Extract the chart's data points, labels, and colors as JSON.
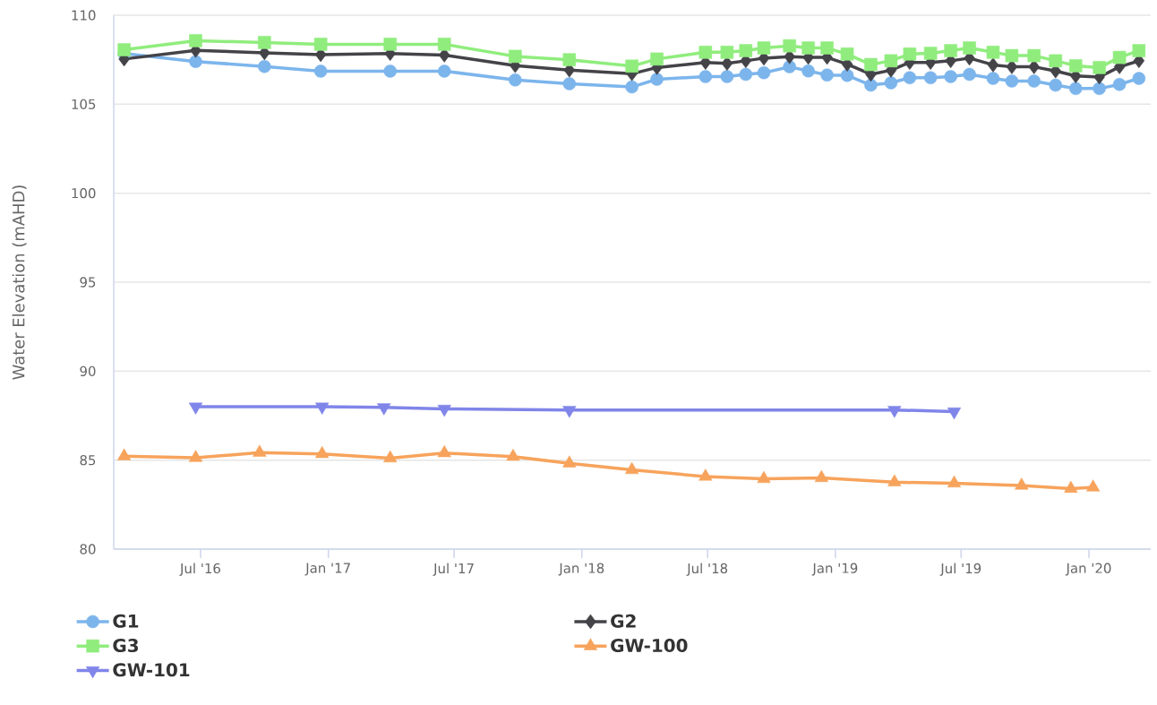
{
  "chart_data": {
    "type": "line",
    "ylabel": "Water Elevation (mAHD)",
    "xlim": [
      "2016-02-27",
      "2020-03-30"
    ],
    "xticks": [
      {
        "value": "2016-07-01",
        "label": "Jul '16"
      },
      {
        "value": "2017-01-01",
        "label": "Jan '17"
      },
      {
        "value": "2017-07-01",
        "label": "Jul '17"
      },
      {
        "value": "2018-01-01",
        "label": "Jan '18"
      },
      {
        "value": "2018-07-01",
        "label": "Jul '18"
      },
      {
        "value": "2019-01-01",
        "label": "Jan '19"
      },
      {
        "value": "2019-07-01",
        "label": "Jul '19"
      },
      {
        "value": "2020-01-01",
        "label": "Jan '20"
      }
    ],
    "ylim": [
      80,
      110
    ],
    "yticks": [
      80,
      85,
      90,
      95,
      100,
      105,
      110
    ],
    "grid": "y",
    "legend": "bottom",
    "series": [
      {
        "name": "G1",
        "color": "#7cb5ec",
        "marker": "circle",
        "x": [
          "2016-03-13",
          "2016-06-24",
          "2016-10-01",
          "2016-12-21",
          "2017-03-31",
          "2017-06-17",
          "2017-09-27",
          "2017-12-14",
          "2018-03-14",
          "2018-04-19",
          "2018-06-28",
          "2018-07-29",
          "2018-08-25",
          "2018-09-20",
          "2018-10-27",
          "2018-11-23",
          "2018-12-20",
          "2019-01-18",
          "2019-02-21",
          "2019-03-22",
          "2019-04-18",
          "2019-05-18",
          "2019-06-16",
          "2019-07-13",
          "2019-08-16",
          "2019-09-12",
          "2019-10-14",
          "2019-11-14",
          "2019-12-13",
          "2020-01-16",
          "2020-02-14",
          "2020-03-13"
        ],
        "values": [
          107.85,
          107.4,
          107.12,
          106.86,
          106.86,
          106.86,
          106.36,
          106.15,
          105.97,
          106.4,
          106.55,
          106.55,
          106.68,
          106.77,
          107.1,
          106.87,
          106.64,
          106.62,
          106.07,
          106.2,
          106.49,
          106.49,
          106.55,
          106.68,
          106.45,
          106.3,
          106.3,
          106.07,
          105.88,
          105.88,
          106.11,
          106.45
        ]
      },
      {
        "name": "G2",
        "color": "#434348",
        "marker": "diamond",
        "x": [
          "2016-03-13",
          "2016-06-24",
          "2016-10-01",
          "2016-12-21",
          "2017-03-31",
          "2017-06-17",
          "2017-09-27",
          "2017-12-14",
          "2018-03-14",
          "2018-04-19",
          "2018-06-28",
          "2018-07-29",
          "2018-08-25",
          "2018-09-20",
          "2018-10-27",
          "2018-11-23",
          "2018-12-20",
          "2019-01-18",
          "2019-02-21",
          "2019-03-22",
          "2019-04-18",
          "2019-05-18",
          "2019-06-16",
          "2019-07-13",
          "2019-08-16",
          "2019-09-12",
          "2019-10-14",
          "2019-11-14",
          "2019-12-13",
          "2020-01-16",
          "2020-02-14",
          "2020-03-13"
        ],
        "values": [
          107.54,
          108.02,
          107.89,
          107.79,
          107.85,
          107.76,
          107.17,
          106.92,
          106.71,
          107.06,
          107.35,
          107.29,
          107.44,
          107.59,
          107.67,
          107.63,
          107.63,
          107.25,
          106.68,
          106.91,
          107.35,
          107.35,
          107.44,
          107.59,
          107.21,
          107.1,
          107.1,
          106.87,
          106.59,
          106.53,
          107.1,
          107.44
        ]
      },
      {
        "name": "G3",
        "color": "#90ed7d",
        "marker": "square",
        "x": [
          "2016-03-13",
          "2016-06-24",
          "2016-10-01",
          "2016-12-21",
          "2017-03-31",
          "2017-06-17",
          "2017-09-27",
          "2017-12-14",
          "2018-03-14",
          "2018-04-19",
          "2018-06-28",
          "2018-07-29",
          "2018-08-25",
          "2018-09-20",
          "2018-10-27",
          "2018-11-23",
          "2018-12-20",
          "2019-01-18",
          "2019-02-21",
          "2019-03-22",
          "2019-04-18",
          "2019-05-18",
          "2019-06-16",
          "2019-07-13",
          "2019-08-16",
          "2019-09-12",
          "2019-10-14",
          "2019-11-14",
          "2019-12-13",
          "2020-01-16",
          "2020-02-14",
          "2020-03-13"
        ],
        "values": [
          108.06,
          108.57,
          108.47,
          108.37,
          108.37,
          108.37,
          107.69,
          107.5,
          107.14,
          107.54,
          107.92,
          107.92,
          108.01,
          108.16,
          108.28,
          108.16,
          108.16,
          107.82,
          107.23,
          107.44,
          107.82,
          107.86,
          108.01,
          108.16,
          107.92,
          107.73,
          107.73,
          107.44,
          107.16,
          107.06,
          107.63,
          108.01
        ]
      },
      {
        "name": "GW-100",
        "color": "#f7a35c",
        "marker": "triangle",
        "x": [
          "2016-03-13",
          "2016-06-24",
          "2016-09-24",
          "2016-12-23",
          "2017-03-31",
          "2017-06-17",
          "2017-09-24",
          "2017-12-14",
          "2018-03-14",
          "2018-06-28",
          "2018-09-20",
          "2018-12-12",
          "2019-03-27",
          "2019-06-21",
          "2019-09-26",
          "2019-12-06",
          "2020-01-07"
        ],
        "values": [
          85.22,
          85.13,
          85.42,
          85.35,
          85.11,
          85.4,
          85.2,
          84.82,
          84.45,
          84.08,
          83.95,
          84.0,
          83.76,
          83.7,
          83.57,
          83.4,
          83.47
        ]
      },
      {
        "name": "GW-101",
        "color": "#8085e9",
        "marker": "triangle-down",
        "x": [
          "2016-06-24",
          "2016-12-23",
          "2017-03-22",
          "2017-06-17",
          "2017-12-14",
          "2019-03-27",
          "2019-06-21"
        ],
        "values": [
          88.0,
          88.0,
          87.96,
          87.88,
          87.82,
          87.82,
          87.73
        ]
      }
    ]
  }
}
